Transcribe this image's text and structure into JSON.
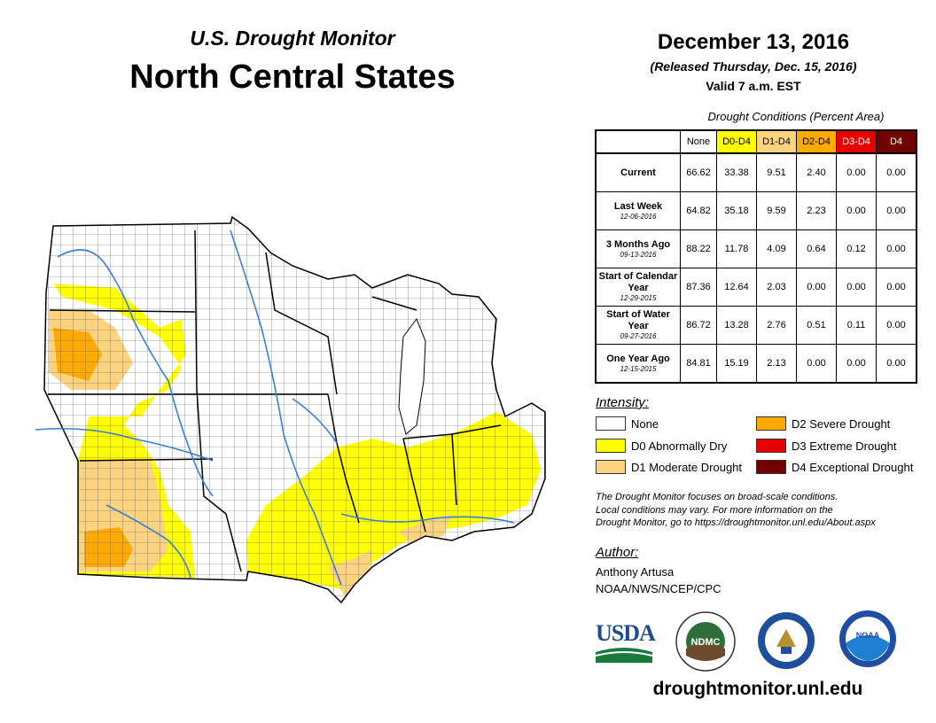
{
  "header": {
    "subtitle": "U.S. Drought Monitor",
    "title": "North Central States",
    "date": "December 13, 2016",
    "released": "(Released Thursday, Dec. 15, 2016)",
    "valid": "Valid 7 a.m. EST"
  },
  "table": {
    "caption": "Drought Conditions (Percent Area)",
    "columns": [
      "None",
      "D0-D4",
      "D1-D4",
      "D2-D4",
      "D3-D4",
      "D4"
    ],
    "column_colors": [
      "#ffffff",
      "#ffff00",
      "#fcd37f",
      "#ffaa00",
      "#e60000",
      "#730000"
    ],
    "rows": [
      {
        "label": "Current",
        "sublabel": "",
        "values": [
          "66.62",
          "33.38",
          "9.51",
          "2.40",
          "0.00",
          "0.00"
        ]
      },
      {
        "label": "Last Week",
        "sublabel": "12-06-2016",
        "values": [
          "64.82",
          "35.18",
          "9.59",
          "2.23",
          "0.00",
          "0.00"
        ]
      },
      {
        "label": "3 Months Ago",
        "sublabel": "09-13-2016",
        "values": [
          "88.22",
          "11.78",
          "4.09",
          "0.64",
          "0.12",
          "0.00"
        ]
      },
      {
        "label": "Start of Calendar Year",
        "sublabel": "12-29-2015",
        "values": [
          "87.36",
          "12.64",
          "2.03",
          "0.00",
          "0.00",
          "0.00"
        ]
      },
      {
        "label": "Start of Water Year",
        "sublabel": "09-27-2016",
        "values": [
          "86.72",
          "13.28",
          "2.76",
          "0.51",
          "0.11",
          "0.00"
        ]
      },
      {
        "label": "One Year Ago",
        "sublabel": "12-15-2015",
        "values": [
          "84.81",
          "15.19",
          "2.13",
          "0.00",
          "0.00",
          "0.00"
        ]
      }
    ]
  },
  "legend": {
    "title": "Intensity:",
    "items": [
      {
        "label": "None",
        "color": "#ffffff"
      },
      {
        "label": "D0 Abnormally Dry",
        "color": "#ffff00"
      },
      {
        "label": "D1 Moderate Drought",
        "color": "#fcd37f"
      },
      {
        "label": "D2 Severe Drought",
        "color": "#ffaa00"
      },
      {
        "label": "D3 Extreme Drought",
        "color": "#e60000"
      },
      {
        "label": "D4 Exceptional Drought",
        "color": "#730000"
      }
    ]
  },
  "note": {
    "line1": "The Drought Monitor focuses on broad-scale conditions.",
    "line2": "Local conditions may vary. For more information on the",
    "line3": "Drought Monitor, go to https://droughtmonitor.unl.edu/About.aspx"
  },
  "author": {
    "title": "Author:",
    "name": "Anthony Artusa",
    "org": "NOAA/NWS/NCEP/CPC"
  },
  "logos": {
    "usda": "USDA",
    "ndmc": "NDMC",
    "noaa": "NOAA"
  },
  "website": "droughtmonitor.unl.edu"
}
